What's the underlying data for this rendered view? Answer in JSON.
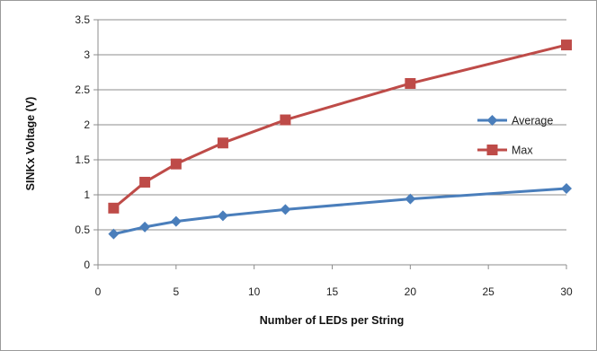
{
  "chart_data": {
    "type": "line",
    "title": "",
    "xlabel": "Number of LEDs per String",
    "ylabel": "SINKx Voltage (V)",
    "xlim": [
      0,
      30
    ],
    "ylim": [
      0,
      3.5
    ],
    "xticks": [
      0,
      5,
      10,
      15,
      20,
      25,
      30
    ],
    "xtick_labels": [
      "0",
      "5",
      "10",
      "15",
      "20",
      "25",
      "30"
    ],
    "yticks": [
      0,
      0.5,
      1,
      1.5,
      2,
      2.5,
      3,
      3.5
    ],
    "ytick_labels": [
      "0",
      "0.5",
      "1",
      "1.5",
      "2",
      "2.5",
      "3",
      "3.5"
    ],
    "grid": "horizontal",
    "legend_position": "right",
    "x": [
      1,
      3,
      5,
      8,
      12,
      20,
      30
    ],
    "series": [
      {
        "name": "Average",
        "values": [
          0.44,
          0.54,
          0.62,
          0.7,
          0.79,
          0.94,
          1.09
        ],
        "color": "#4a7ebb",
        "marker": "diamond"
      },
      {
        "name": "Max",
        "values": [
          0.81,
          1.18,
          1.44,
          1.74,
          2.07,
          2.59,
          3.14
        ],
        "color": "#be4b48",
        "marker": "square"
      }
    ]
  }
}
